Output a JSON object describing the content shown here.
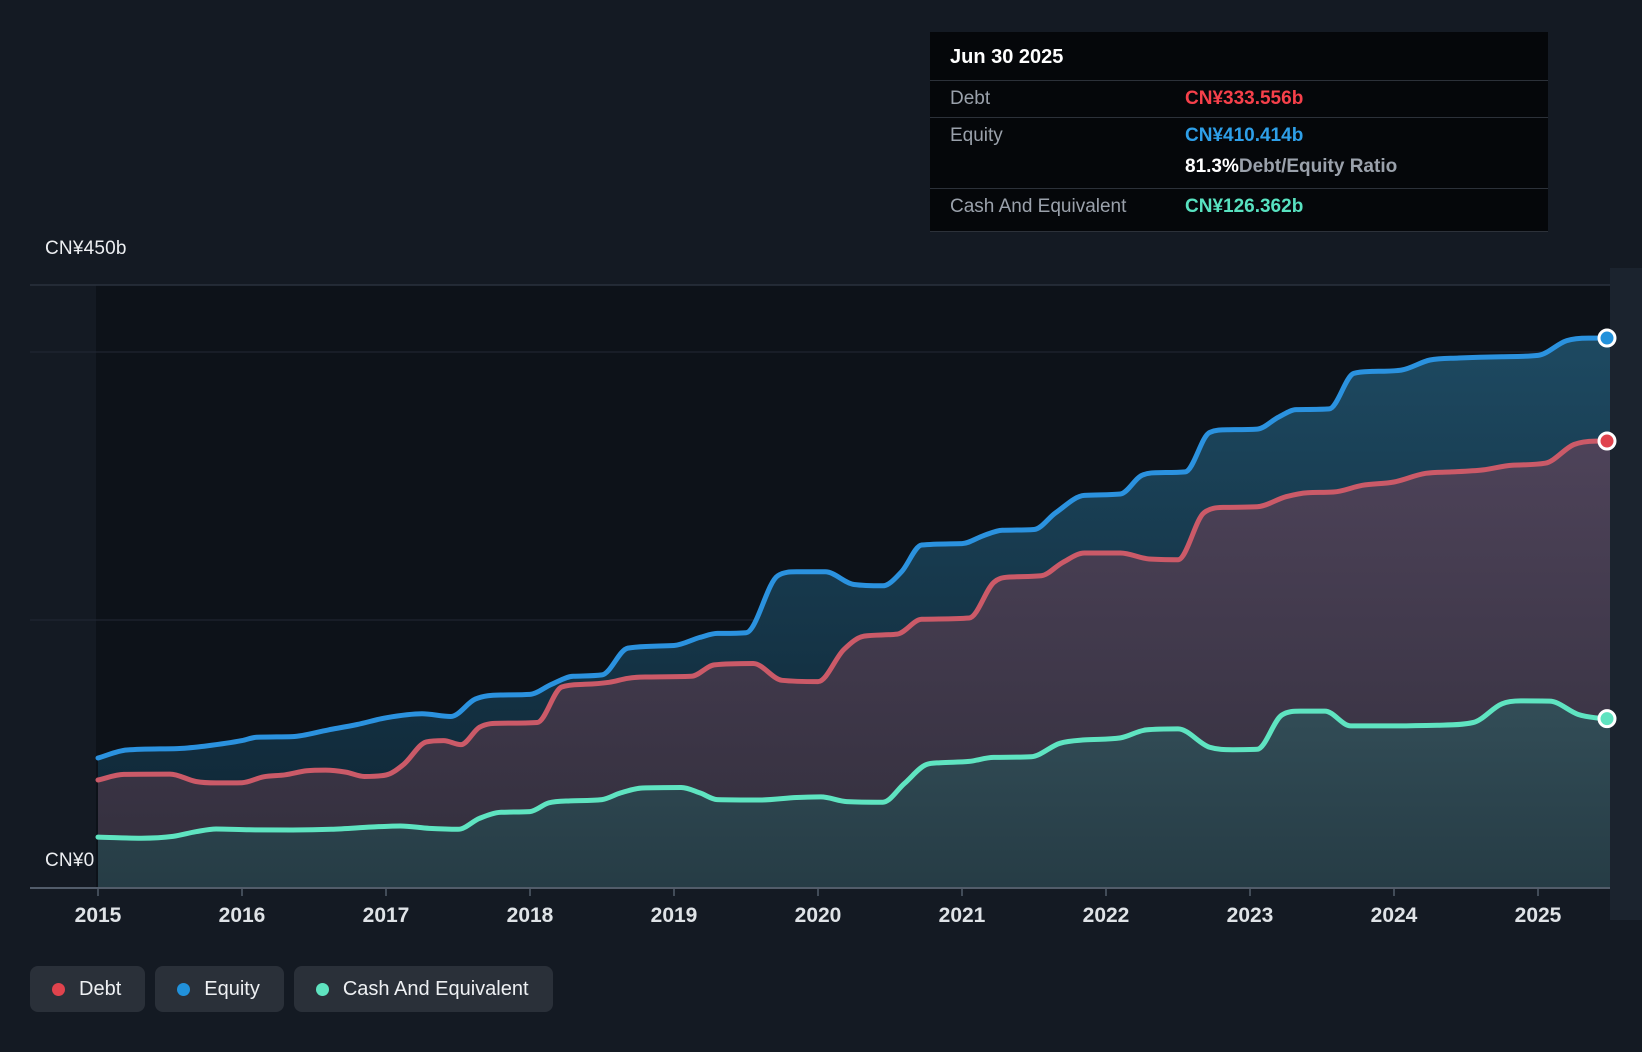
{
  "y_axis": {
    "top_label": "CN¥450b",
    "zero_label": "CN¥0"
  },
  "tooltip": {
    "title": "Jun 30 2025",
    "debt_label": "Debt",
    "debt_value": "CN¥333.556b",
    "equity_label": "Equity",
    "equity_value": "CN¥410.414b",
    "ratio_value": "81.3%",
    "ratio_label": " Debt/Equity Ratio",
    "cash_label": "Cash And Equivalent",
    "cash_value": "CN¥126.362b"
  },
  "legend": {
    "debt": "Debt",
    "equity": "Equity",
    "cash": "Cash And Equivalent"
  },
  "colors": {
    "debt": {
      "line": "#cb5a68",
      "dot": "#e0434d",
      "value": "#f6404a",
      "fill_top": "#574a63",
      "fill_bottom": "#322e3c"
    },
    "equity": {
      "line": "#2b92df",
      "dot": "#2191db",
      "value": "#2e9fe8",
      "fill_top": "#1f4d66",
      "fill_bottom": "#0e2331"
    },
    "cash": {
      "line": "#5fe4c1",
      "dot": "#5fe3c0",
      "value": "#58e2c0",
      "fill_top": "#4e7380",
      "fill_bottom": "#263c45"
    },
    "page_bg": "#141a23",
    "plot_bg": "#0d1219",
    "right_strip": "#1b232e",
    "grid_major": "#2a313d",
    "grid_minor": "#222835",
    "axis": "#525c6a",
    "year_label": "#dfe3e7"
  },
  "chart_data": {
    "type": "area",
    "title": "Debt to Equity history (Jun 30 2025: Debt CN¥333.556b, Equity CN¥410.414b, Cash CN¥126.362b)",
    "y_unit": "CN¥ billions",
    "x_domain": [
      2015,
      2025.5
    ],
    "y_domain": [
      0,
      450
    ],
    "x_ticks": [
      2015,
      2016,
      2017,
      2018,
      2019,
      2020,
      2021,
      2022,
      2023,
      2024,
      2025
    ],
    "gridline_values": [
      450,
      400,
      200
    ],
    "grid": "on",
    "legend_position": "bottom-left",
    "series": [
      {
        "name": "Equity",
        "key": "equity",
        "points": [
          [
            2015.0,
            97
          ],
          [
            2015.2,
            103
          ],
          [
            2015.55,
            104
          ],
          [
            2015.75,
            106
          ],
          [
            2016.0,
            110
          ],
          [
            2016.1,
            112.5
          ],
          [
            2016.35,
            113
          ],
          [
            2016.6,
            118
          ],
          [
            2016.8,
            122
          ],
          [
            2017.0,
            127
          ],
          [
            2017.25,
            130
          ],
          [
            2017.45,
            128
          ],
          [
            2017.62,
            141
          ],
          [
            2017.8,
            144
          ],
          [
            2018.0,
            144.5
          ],
          [
            2018.15,
            152
          ],
          [
            2018.3,
            158
          ],
          [
            2018.5,
            159
          ],
          [
            2018.68,
            179
          ],
          [
            2019.0,
            181
          ],
          [
            2019.18,
            187
          ],
          [
            2019.3,
            190
          ],
          [
            2019.5,
            190.5
          ],
          [
            2019.72,
            233
          ],
          [
            2019.85,
            236
          ],
          [
            2020.05,
            236
          ],
          [
            2020.25,
            226.5
          ],
          [
            2020.45,
            225.5
          ],
          [
            2020.58,
            236
          ],
          [
            2020.72,
            256
          ],
          [
            2021.0,
            257
          ],
          [
            2021.15,
            263
          ],
          [
            2021.28,
            267
          ],
          [
            2021.5,
            267.5
          ],
          [
            2021.65,
            280
          ],
          [
            2021.85,
            293
          ],
          [
            2022.1,
            294
          ],
          [
            2022.25,
            308
          ],
          [
            2022.38,
            310
          ],
          [
            2022.55,
            310.5
          ],
          [
            2022.72,
            340
          ],
          [
            2022.85,
            342
          ],
          [
            2023.05,
            342.5
          ],
          [
            2023.2,
            351.5
          ],
          [
            2023.32,
            357
          ],
          [
            2023.55,
            357.5
          ],
          [
            2023.72,
            384
          ],
          [
            2023.85,
            385.5
          ],
          [
            2024.05,
            386.5
          ],
          [
            2024.25,
            394
          ],
          [
            2024.45,
            395.5
          ],
          [
            2024.75,
            396.5
          ],
          [
            2025.0,
            397.5
          ],
          [
            2025.2,
            408.5
          ],
          [
            2025.35,
            410.4
          ],
          [
            2025.5,
            410.414
          ]
        ]
      },
      {
        "name": "Debt",
        "key": "debt",
        "points": [
          [
            2015.0,
            80.6
          ],
          [
            2015.18,
            84.8
          ],
          [
            2015.5,
            85
          ],
          [
            2015.68,
            79.5
          ],
          [
            2015.82,
            78.4
          ],
          [
            2016.0,
            78.6
          ],
          [
            2016.15,
            83
          ],
          [
            2016.3,
            84.5
          ],
          [
            2016.45,
            87.5
          ],
          [
            2016.58,
            88
          ],
          [
            2016.72,
            86.5
          ],
          [
            2016.85,
            83.2
          ],
          [
            2017.0,
            84.3
          ],
          [
            2017.12,
            92
          ],
          [
            2017.28,
            109
          ],
          [
            2017.4,
            110
          ],
          [
            2017.52,
            107
          ],
          [
            2017.65,
            120
          ],
          [
            2017.8,
            123
          ],
          [
            2018.05,
            123.5
          ],
          [
            2018.22,
            150
          ],
          [
            2018.38,
            152
          ],
          [
            2018.55,
            153.5
          ],
          [
            2018.68,
            156.5
          ],
          [
            2018.8,
            157.5
          ],
          [
            2019.12,
            158
          ],
          [
            2019.28,
            166.5
          ],
          [
            2019.55,
            167.5
          ],
          [
            2019.75,
            155
          ],
          [
            2020.0,
            154
          ],
          [
            2020.18,
            178
          ],
          [
            2020.32,
            188
          ],
          [
            2020.55,
            189.5
          ],
          [
            2020.72,
            200.5
          ],
          [
            2021.05,
            201.5
          ],
          [
            2021.22,
            228
          ],
          [
            2021.32,
            232
          ],
          [
            2021.55,
            233
          ],
          [
            2021.7,
            243
          ],
          [
            2021.85,
            250
          ],
          [
            2022.1,
            250
          ],
          [
            2022.3,
            245.5
          ],
          [
            2022.5,
            245
          ],
          [
            2022.68,
            280
          ],
          [
            2022.82,
            284
          ],
          [
            2023.05,
            284.5
          ],
          [
            2023.25,
            292
          ],
          [
            2023.4,
            295
          ],
          [
            2023.58,
            295.5
          ],
          [
            2023.78,
            300.5
          ],
          [
            2024.0,
            303
          ],
          [
            2024.22,
            309.5
          ],
          [
            2024.4,
            310.5
          ],
          [
            2024.62,
            312
          ],
          [
            2024.82,
            315.5
          ],
          [
            2025.05,
            317
          ],
          [
            2025.25,
            331
          ],
          [
            2025.4,
            333.5
          ],
          [
            2025.5,
            333.556
          ]
        ]
      },
      {
        "name": "Cash And Equivalent",
        "key": "cash",
        "points": [
          [
            2015.0,
            38
          ],
          [
            2015.3,
            37.2
          ],
          [
            2015.52,
            38.5
          ],
          [
            2015.68,
            42
          ],
          [
            2015.82,
            44
          ],
          [
            2016.05,
            43.4
          ],
          [
            2016.35,
            43.3
          ],
          [
            2016.62,
            43.8
          ],
          [
            2016.9,
            45.5
          ],
          [
            2017.1,
            46.3
          ],
          [
            2017.3,
            44.5
          ],
          [
            2017.5,
            43.8
          ],
          [
            2017.65,
            52
          ],
          [
            2017.8,
            56.5
          ],
          [
            2018.0,
            57
          ],
          [
            2018.13,
            63.5
          ],
          [
            2018.28,
            65
          ],
          [
            2018.5,
            66
          ],
          [
            2018.63,
            71
          ],
          [
            2018.78,
            74.6
          ],
          [
            2019.05,
            75
          ],
          [
            2019.18,
            71
          ],
          [
            2019.3,
            66
          ],
          [
            2019.6,
            65.7
          ],
          [
            2019.85,
            67.5
          ],
          [
            2020.02,
            68
          ],
          [
            2020.2,
            64.5
          ],
          [
            2020.45,
            64
          ],
          [
            2020.6,
            78
          ],
          [
            2020.75,
            92
          ],
          [
            2020.85,
            93.5
          ],
          [
            2021.05,
            94.5
          ],
          [
            2021.22,
            97.5
          ],
          [
            2021.48,
            98
          ],
          [
            2021.68,
            108
          ],
          [
            2021.85,
            110.5
          ],
          [
            2022.1,
            112
          ],
          [
            2022.28,
            118
          ],
          [
            2022.5,
            118.7
          ],
          [
            2022.72,
            105
          ],
          [
            2022.88,
            103.2
          ],
          [
            2023.05,
            103.5
          ],
          [
            2023.22,
            129
          ],
          [
            2023.35,
            132
          ],
          [
            2023.52,
            132
          ],
          [
            2023.7,
            121
          ],
          [
            2023.95,
            121
          ],
          [
            2024.3,
            121.5
          ],
          [
            2024.55,
            123.5
          ],
          [
            2024.75,
            137.5
          ],
          [
            2024.88,
            139.6
          ],
          [
            2025.08,
            139.5
          ],
          [
            2025.28,
            129.5
          ],
          [
            2025.4,
            127
          ],
          [
            2025.5,
            126.362
          ]
        ]
      }
    ]
  }
}
